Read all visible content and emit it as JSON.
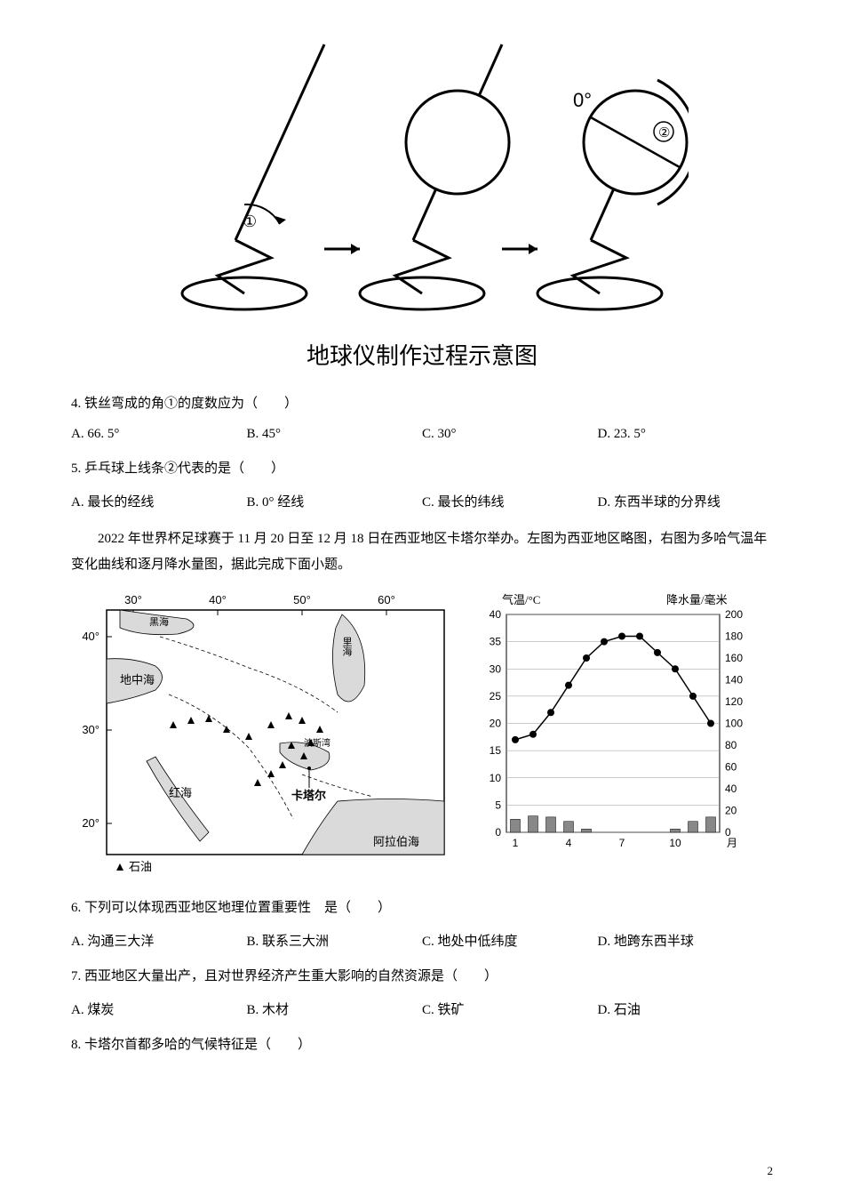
{
  "colors": {
    "text": "#000000",
    "bg": "#ffffff",
    "stroke": "#000000",
    "chart_grid": "#999999",
    "chart_point": "#000000",
    "chart_bar": "#888888",
    "map_water": "#dadada",
    "map_border": "#000000"
  },
  "globe_diagram": {
    "title": "地球仪制作过程示意图",
    "angle_label": "①",
    "line_label": "②",
    "zero_label": "0°",
    "stroke_width": 3,
    "stand_angle_deg": 66.5
  },
  "q4": {
    "text": "4. 铁丝弯成的角①的度数应为（　　）",
    "options": {
      "A": "A. 66. 5°",
      "B": "B. 45°",
      "C": "C. 30°",
      "D": "D. 23. 5°"
    }
  },
  "q5": {
    "text": "5. 乒乓球上线条②代表的是（　　）",
    "options": {
      "A": "A. 最长的经线",
      "B": "B. 0° 经线",
      "C": "C. 最长的纬线",
      "D": "D. 东西半球的分界线"
    }
  },
  "passage": "2022 年世界杯足球赛于 11 月 20 日至 12 月 18 日在西亚地区卡塔尔举办。左图为西亚地区略图，右图为多哈气温年变化曲线和逐月降水量图，据此完成下面小题。",
  "map": {
    "lon_ticks": [
      "30°",
      "40°",
      "50°",
      "60°"
    ],
    "lat_ticks": [
      "40°",
      "30°",
      "20°"
    ],
    "labels": {
      "black_sea": "黑海",
      "caspian": "里海",
      "mediterranean": "地中海",
      "red_sea": "红海",
      "persian_gulf": "波斯湾",
      "arabian_sea": "阿拉伯海",
      "qatar": "卡塔尔"
    },
    "legend": "▲ 石油",
    "oil_points": [
      [
        115,
        155
      ],
      [
        135,
        150
      ],
      [
        155,
        148
      ],
      [
        175,
        160
      ],
      [
        200,
        168
      ],
      [
        225,
        155
      ],
      [
        245,
        145
      ],
      [
        260,
        150
      ],
      [
        270,
        175
      ],
      [
        280,
        160
      ],
      [
        262,
        190
      ],
      [
        248,
        178
      ],
      [
        238,
        200
      ],
      [
        225,
        210
      ],
      [
        210,
        220
      ]
    ],
    "font_size_axis": 13,
    "font_size_label": 13,
    "font_size_small": 11
  },
  "climate_chart": {
    "title_left": "气温/°C",
    "title_right": "降水量/毫米",
    "x_label": "月",
    "temp": {
      "ylim": [
        0,
        40
      ],
      "ytick_step": 5,
      "values": [
        17,
        18,
        22,
        27,
        32,
        35,
        36,
        36,
        33,
        30,
        25,
        20
      ],
      "color": "#000000",
      "line_width": 1.5,
      "marker_size": 4
    },
    "precip": {
      "ylim": [
        0,
        200
      ],
      "ytick_step": 20,
      "values": [
        12,
        15,
        14,
        10,
        3,
        0,
        0,
        0,
        0,
        3,
        10,
        14
      ],
      "bar_color": "#888888",
      "bar_width_ratio": 0.55
    },
    "x_ticks": [
      "1",
      "4",
      "7",
      "10"
    ],
    "font_size_axis": 12,
    "font_size_title": 13,
    "grid_color": "#999999",
    "bg": "#ffffff"
  },
  "q6": {
    "text": "6. 下列可以体现西亚地区地理位置重要性　是（　　）",
    "options": {
      "A": "A. 沟通三大洋",
      "B": "B. 联系三大洲",
      "C": "C. 地处中低纬度",
      "D": "D. 地跨东西半球"
    }
  },
  "q7": {
    "text": "7. 西亚地区大量出产，且对世界经济产生重大影响的自然资源是（　　）",
    "options": {
      "A": "A. 煤炭",
      "B": "B. 木材",
      "C": "C. 铁矿",
      "D": "D. 石油"
    }
  },
  "q8": {
    "text": "8. 卡塔尔首都多哈的气候特征是（　　）"
  },
  "page_number": "2"
}
